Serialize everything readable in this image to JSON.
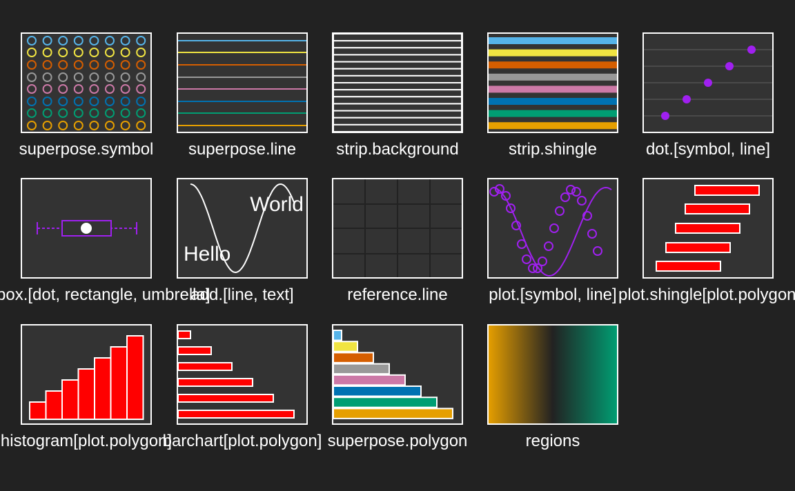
{
  "colors": {
    "background": "#222222",
    "panel": "#333333",
    "border": "#ffffff",
    "accent": "#a020f0",
    "fill_red": "#ff0000",
    "palette": [
      "#56b4e9",
      "#f0e442",
      "#d55e00",
      "#999999",
      "#cc79a7",
      "#0072b2",
      "#009e73",
      "#e69f00"
    ]
  },
  "tiles": [
    {
      "id": "superpose-symbol",
      "label": "superpose.symbol"
    },
    {
      "id": "superpose-line",
      "label": "superpose.line"
    },
    {
      "id": "strip-background",
      "label": "strip.background"
    },
    {
      "id": "strip-shingle",
      "label": "strip.shingle"
    },
    {
      "id": "dot-symbol-line",
      "label": "dot.[symbol, line]"
    },
    {
      "id": "box-dot-rectangle-umbrella",
      "label": "box.[dot, rectangle, umbrella]"
    },
    {
      "id": "add-line-text",
      "label": "add.[line, text]",
      "texts": [
        "World",
        "Hello"
      ]
    },
    {
      "id": "reference-line",
      "label": "reference.line"
    },
    {
      "id": "plot-symbol-line",
      "label": "plot.[symbol, line]"
    },
    {
      "id": "plot-shingle",
      "label": "plot.shingle[plot.polygon]"
    },
    {
      "id": "histogram",
      "label": "histogram[plot.polygon]"
    },
    {
      "id": "barchart",
      "label": "barchart[plot.polygon]"
    },
    {
      "id": "superpose-polygon",
      "label": "superpose.polygon"
    },
    {
      "id": "regions",
      "label": "regions"
    }
  ]
}
